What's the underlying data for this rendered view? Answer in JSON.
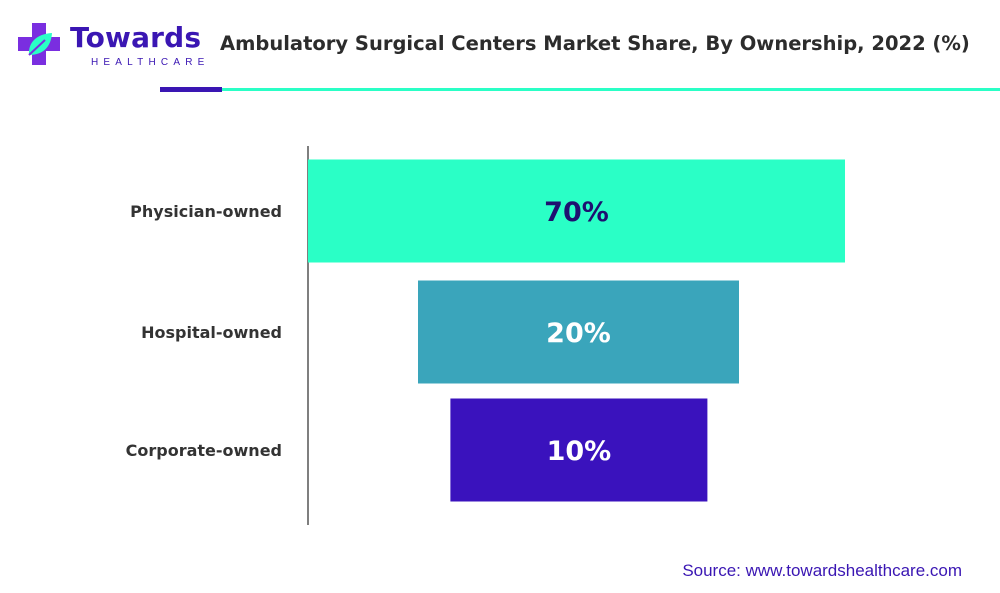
{
  "brand": {
    "name": "Towards",
    "sub": "HEALTHCARE"
  },
  "title": "Ambulatory Surgical Centers Market Share, By Ownership, 2022 (%)",
  "source": "Source: www.towardshealthcare.com",
  "colors": {
    "accent_purple": "#3a16b3",
    "accent_teal": "#2affc6",
    "bar_physician": "#2affc6",
    "bar_hospital": "#3aa5bb",
    "bar_corporate": "#3a12bd"
  },
  "chart_data": {
    "type": "bar",
    "orientation": "horizontal",
    "style": "funnel",
    "title": "Ambulatory Surgical Centers Market Share, By Ownership, 2022 (%)",
    "categories": [
      "Physician-owned",
      "Hospital-owned",
      "Corporate-owned"
    ],
    "values": [
      70,
      20,
      10
    ],
    "labels": [
      "70%",
      "20%",
      "10%"
    ],
    "bar_colors": [
      "#2affc6",
      "#3aa5bb",
      "#3a12bd"
    ],
    "label_colors": [
      "#1e1070",
      "#ffffff",
      "#ffffff"
    ],
    "legend": "none",
    "grid": false
  }
}
